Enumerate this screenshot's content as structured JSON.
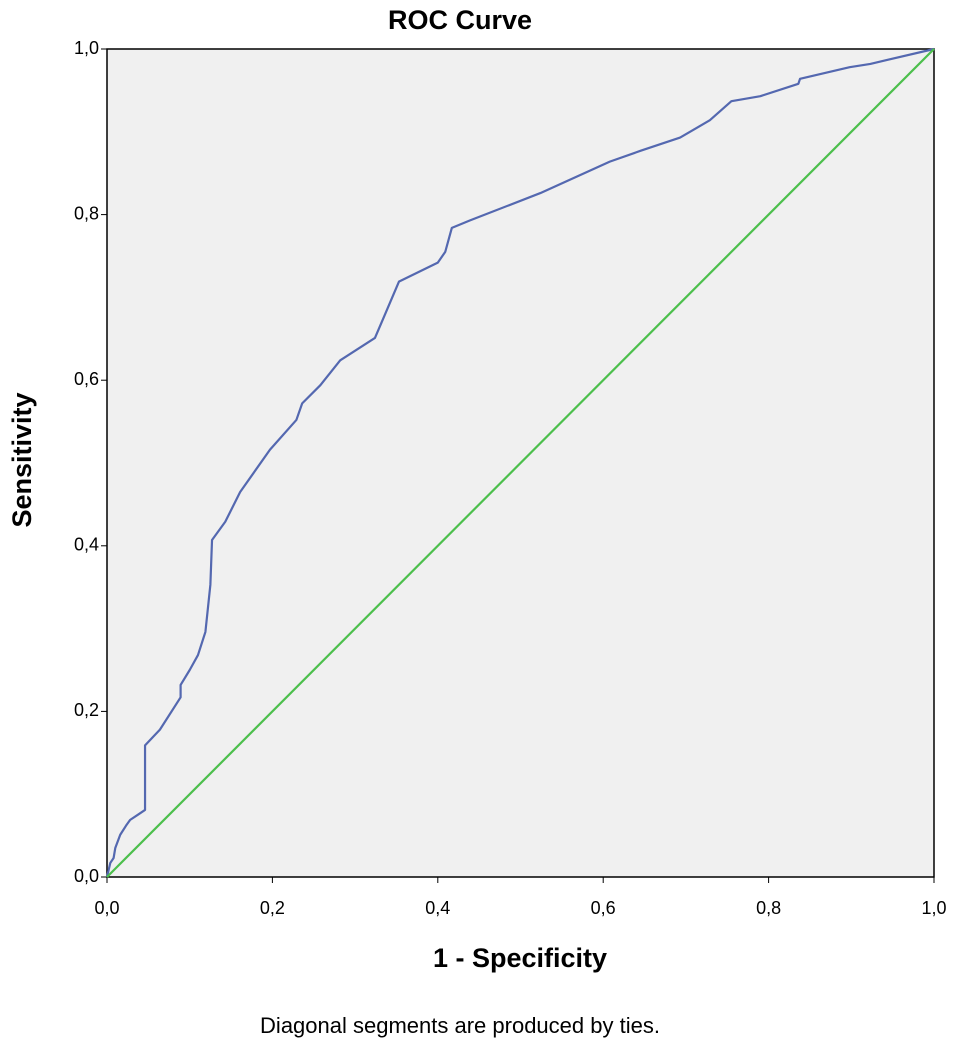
{
  "chart_data": {
    "type": "line",
    "title": "ROC Curve",
    "x_label": "1 - Specificity",
    "y_label": "Sensitivity",
    "annotation": "Diagonal segments are produced by ties.",
    "xlim": [
      0,
      1
    ],
    "ylim": [
      0,
      1
    ],
    "xticks": [
      {
        "value": 0,
        "label": "0,0"
      },
      {
        "value": 0.2,
        "label": "0,2"
      },
      {
        "value": 0.4,
        "label": "0,4"
      },
      {
        "value": 0.6,
        "label": "0,6"
      },
      {
        "value": 0.8,
        "label": "0,8"
      },
      {
        "value": 1,
        "label": "1,0"
      }
    ],
    "yticks": [
      {
        "value": 0,
        "label": "0,0"
      },
      {
        "value": 0.2,
        "label": "0,2"
      },
      {
        "value": 0.4,
        "label": "0,4"
      },
      {
        "value": 0.6,
        "label": "0,6"
      },
      {
        "value": 0.8,
        "label": "0,8"
      },
      {
        "value": 1,
        "label": "1,0"
      }
    ],
    "background": "#f0f0f0",
    "series": [
      {
        "color": "#5468b0",
        "x": [
          0,
          0.004,
          0.008,
          0.01,
          0.016,
          0.023,
          0.028,
          0.037,
          0.046,
          0.046,
          0.064,
          0.089,
          0.089,
          0.1,
          0.11,
          0.119,
          0.125,
          0.127,
          0.143,
          0.161,
          0.197,
          0.229,
          0.236,
          0.258,
          0.282,
          0.324,
          0.353,
          0.4,
          0.409,
          0.417,
          0.439,
          0.524,
          0.608,
          0.645,
          0.693,
          0.729,
          0.755,
          0.79,
          0.836,
          0.838,
          0.898,
          0.923,
          1
        ],
        "values": [
          0,
          0.017,
          0.023,
          0.035,
          0.051,
          0.062,
          0.069,
          0.075,
          0.081,
          0.159,
          0.178,
          0.217,
          0.232,
          0.25,
          0.268,
          0.296,
          0.353,
          0.407,
          0.429,
          0.465,
          0.516,
          0.552,
          0.572,
          0.594,
          0.624,
          0.651,
          0.719,
          0.742,
          0.755,
          0.784,
          0.793,
          0.826,
          0.864,
          0.877,
          0.893,
          0.914,
          0.937,
          0.943,
          0.958,
          0.964,
          0.978,
          0.982,
          1
        ]
      },
      {
        "color": "#4cbf4c",
        "x": [
          0,
          1
        ],
        "values": [
          0,
          1
        ]
      }
    ]
  }
}
